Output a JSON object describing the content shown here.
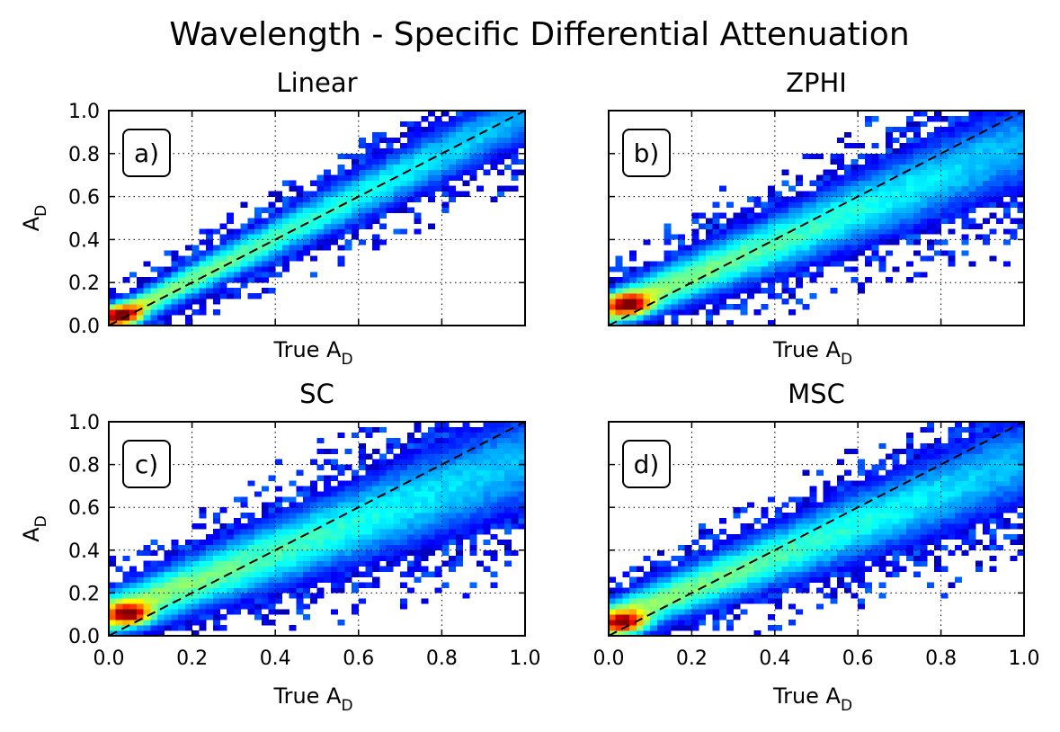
{
  "figure": {
    "suptitle": "Wavelength - Specific Differential Attenuation"
  },
  "chart_data": [
    {
      "type": "heatmap",
      "title": "Linear",
      "panel_label": "a)",
      "xlabel": "True A",
      "xlabel_sub": "D",
      "ylabel": "A",
      "ylabel_sub": "D",
      "xlim": [
        0,
        1
      ],
      "ylim": [
        0,
        1
      ],
      "xticks": [
        "0.0",
        "0.2",
        "0.4",
        "0.6",
        "0.8",
        "1.0"
      ],
      "yticks": [
        "0.0",
        "0.2",
        "0.4",
        "0.6",
        "0.8",
        "1.0"
      ],
      "show_xticklabels": false,
      "show_yticklabels": true,
      "grid": true,
      "reference_line": "y = x (dashed)",
      "density_ridge": {
        "slope": 0.97,
        "intercept": 0.02,
        "spread": 0.05,
        "peak_at": [
          0.03,
          0.05
        ]
      }
    },
    {
      "type": "heatmap",
      "title": "ZPHI",
      "panel_label": "b)",
      "xlabel": "True A",
      "xlabel_sub": "D",
      "ylabel": "",
      "ylabel_sub": "",
      "xlim": [
        0,
        1
      ],
      "ylim": [
        0,
        1
      ],
      "xticks": [
        "0.0",
        "0.2",
        "0.4",
        "0.6",
        "0.8",
        "1.0"
      ],
      "yticks": [
        "0.0",
        "0.2",
        "0.4",
        "0.6",
        "0.8",
        "1.0"
      ],
      "show_xticklabels": false,
      "show_yticklabels": false,
      "grid": true,
      "reference_line": "y = x (dashed)",
      "density_ridge": {
        "slope": 0.78,
        "intercept": 0.07,
        "spread": 0.07,
        "peak_at": [
          0.05,
          0.1
        ]
      }
    },
    {
      "type": "heatmap",
      "title": "SC",
      "panel_label": "c)",
      "xlabel": "True A",
      "xlabel_sub": "D",
      "ylabel": "A",
      "ylabel_sub": "D",
      "xlim": [
        0,
        1
      ],
      "ylim": [
        0,
        1
      ],
      "xticks": [
        "0.0",
        "0.2",
        "0.4",
        "0.6",
        "0.8",
        "1.0"
      ],
      "yticks": [
        "0.0",
        "0.2",
        "0.4",
        "0.6",
        "0.8",
        "1.0"
      ],
      "show_xticklabels": true,
      "show_yticklabels": true,
      "grid": true,
      "reference_line": "y = x (dashed)",
      "density_ridge": {
        "slope": 0.72,
        "intercept": 0.1,
        "spread": 0.08,
        "peak_at": [
          0.05,
          0.1
        ]
      }
    },
    {
      "type": "heatmap",
      "title": "MSC",
      "panel_label": "d)",
      "xlabel": "True A",
      "xlabel_sub": "D",
      "ylabel": "",
      "ylabel_sub": "",
      "xlim": [
        0,
        1
      ],
      "ylim": [
        0,
        1
      ],
      "xticks": [
        "0.0",
        "0.2",
        "0.4",
        "0.6",
        "0.8",
        "1.0"
      ],
      "yticks": [
        "0.0",
        "0.2",
        "0.4",
        "0.6",
        "0.8",
        "1.0"
      ],
      "show_xticklabels": true,
      "show_yticklabels": false,
      "grid": true,
      "reference_line": "y = x (dashed)",
      "density_ridge": {
        "slope": 0.75,
        "intercept": 0.07,
        "spread": 0.07,
        "peak_at": [
          0.04,
          0.06
        ]
      }
    }
  ]
}
